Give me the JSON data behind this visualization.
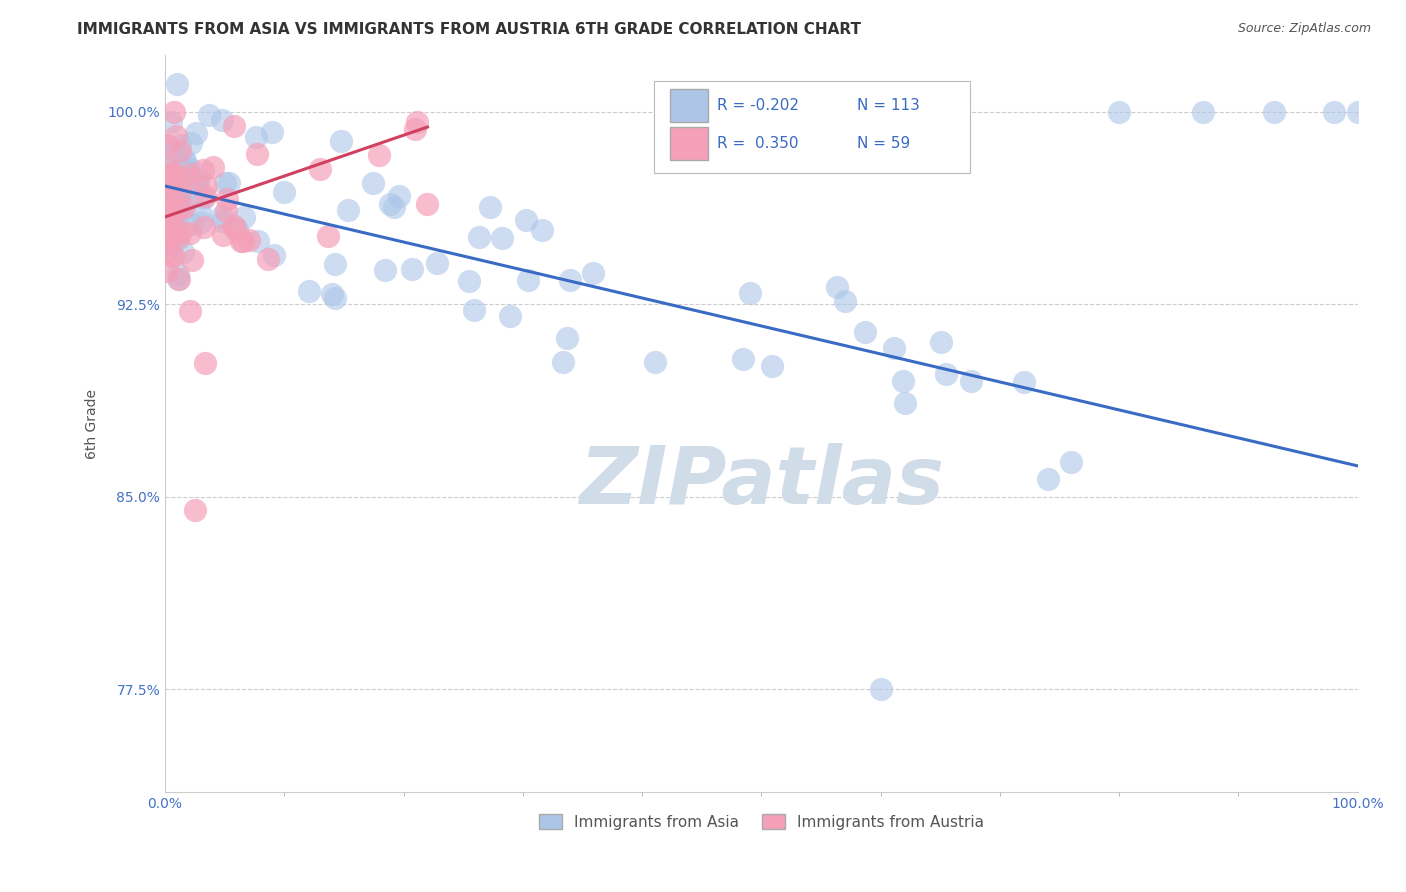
{
  "title": "IMMIGRANTS FROM ASIA VS IMMIGRANTS FROM AUSTRIA 6TH GRADE CORRELATION CHART",
  "source": "Source: ZipAtlas.com",
  "ylabel": "6th Grade",
  "xlim": [
    0.0,
    1.0
  ],
  "ylim": [
    0.735,
    1.022
  ],
  "yticks": [
    0.775,
    0.85,
    0.925,
    1.0
  ],
  "ytick_labels": [
    "77.5%",
    "85.0%",
    "92.5%",
    "100.0%"
  ],
  "xtick_labels": [
    "0.0%",
    "100.0%"
  ],
  "legend_R_asia": "-0.202",
  "legend_N_asia": "113",
  "legend_R_austria": "0.350",
  "legend_N_austria": "59",
  "blue_color": "#adc6e8",
  "pink_color": "#f4a0b8",
  "trend_blue": "#3a6bc4",
  "trend_pink": "#d04060",
  "watermark": "ZIPatlas",
  "watermark_gray": "#d0dce8",
  "title_fontsize": 11,
  "source_fontsize": 9,
  "tick_color": "#4472c4",
  "blue_trend_x": [
    0.0,
    1.0
  ],
  "blue_trend_y": [
    0.971,
    0.862
  ],
  "pink_trend_x": [
    0.0,
    0.22
  ],
  "pink_trend_y": [
    0.959,
    0.994
  ]
}
